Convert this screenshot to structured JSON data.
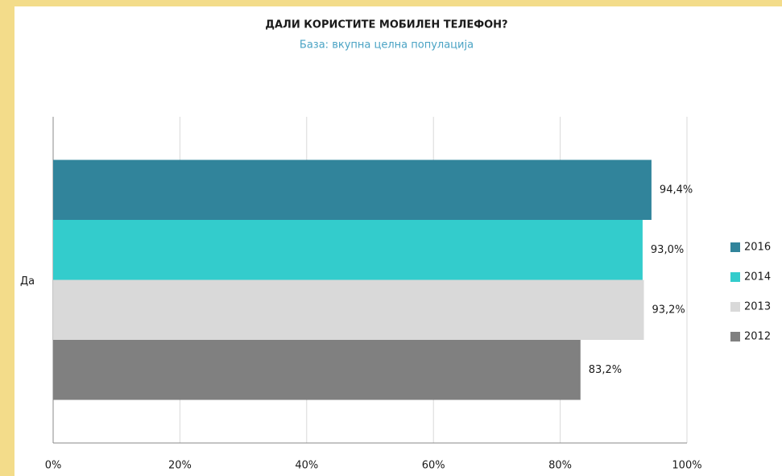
{
  "chart_data": {
    "type": "bar",
    "orientation": "horizontal",
    "title": "ДАЛИ КОРИСТИТЕ МОБИЛЕН ТЕЛЕФОН?",
    "subtitle": "База: вкупна целна популација",
    "categories": [
      "Да"
    ],
    "series": [
      {
        "name": "2016",
        "color": "#31849b",
        "values": [
          94.4
        ],
        "value_labels": [
          "94,4%"
        ]
      },
      {
        "name": "2014",
        "color": "#33cccc",
        "values": [
          93.0
        ],
        "value_labels": [
          "93,0%"
        ]
      },
      {
        "name": "2013",
        "color": "#d9d9d9",
        "values": [
          93.2
        ],
        "value_labels": [
          "93,2%"
        ]
      },
      {
        "name": "2012",
        "color": "#808080",
        "values": [
          83.2
        ],
        "value_labels": [
          "83,2%"
        ]
      }
    ],
    "xlim": [
      0,
      100
    ],
    "xticks": [
      {
        "value": 0,
        "label": "0%"
      },
      {
        "value": 20,
        "label": "20%"
      },
      {
        "value": 40,
        "label": "40%"
      },
      {
        "value": 60,
        "label": "60%"
      },
      {
        "value": 80,
        "label": "80%"
      },
      {
        "value": 100,
        "label": "100%"
      }
    ],
    "grid": true,
    "legend": "right"
  }
}
